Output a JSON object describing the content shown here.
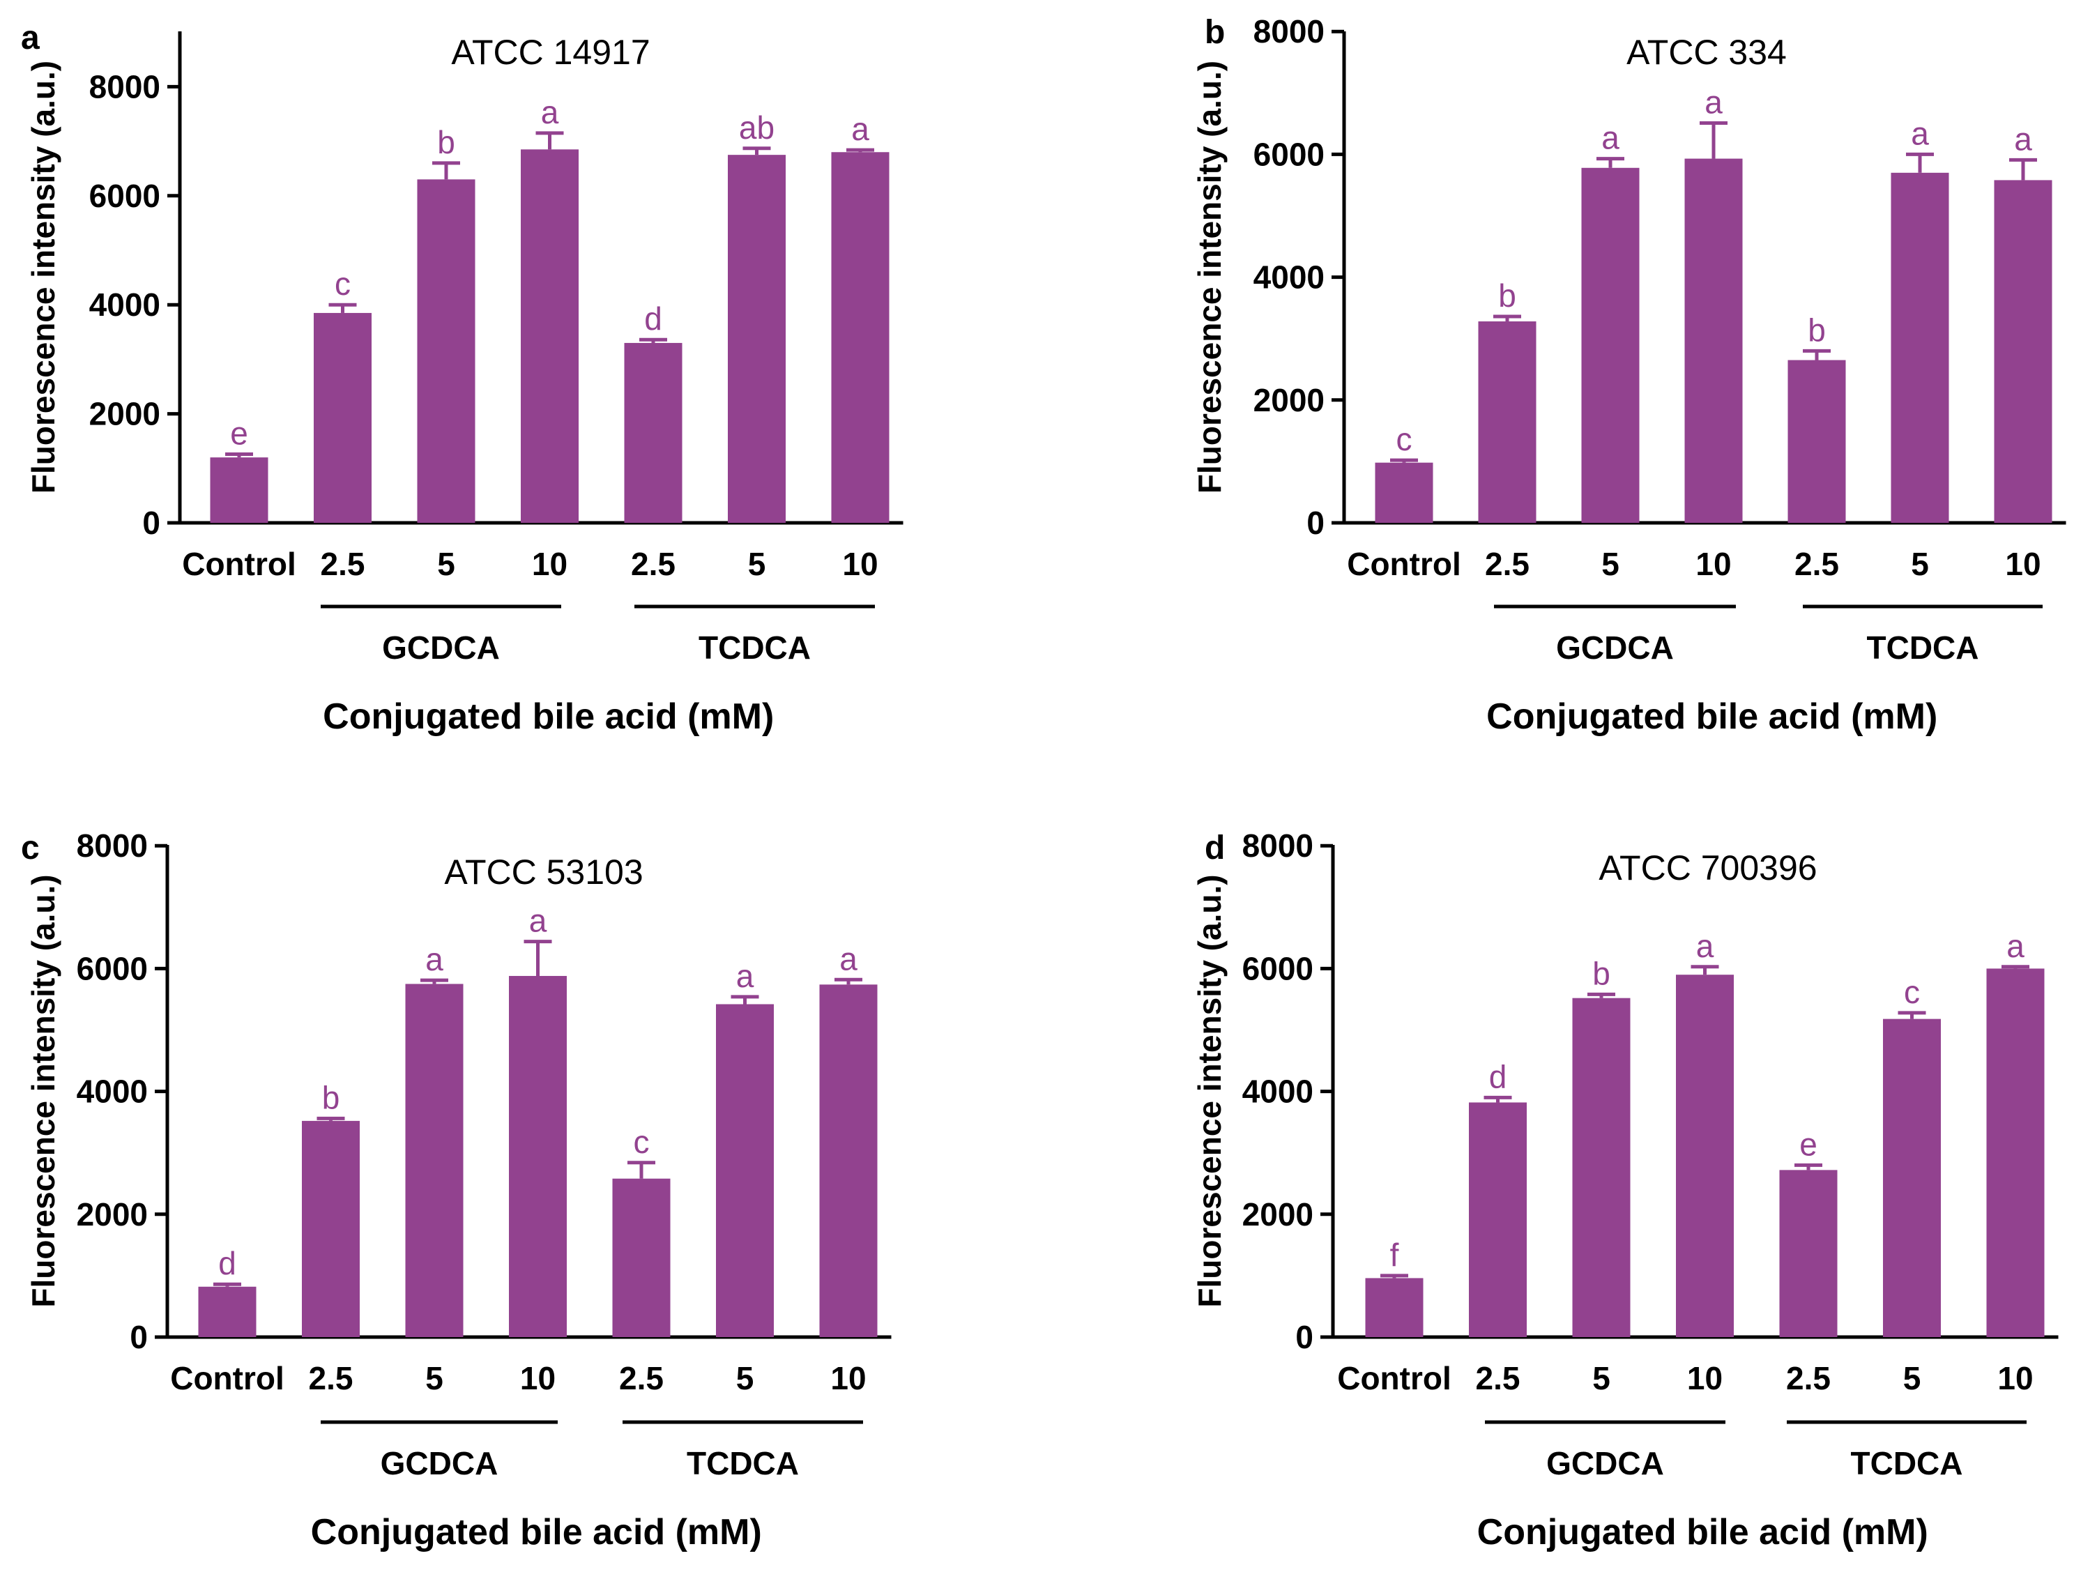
{
  "colors": {
    "bar": "#92428F",
    "letter": "#92428F",
    "axis": "#000000"
  },
  "chart_data": [
    {
      "type": "bar",
      "panel": "a",
      "title": "ATCC 14917",
      "ylabel": "Fluorescence intensity (a.u.)",
      "xlabel": "Conjugated bile acid (mM)",
      "ylim": [
        0,
        9000
      ],
      "yticks": [
        0,
        2000,
        4000,
        6000,
        8000
      ],
      "categories": [
        "Control",
        "2.5",
        "5",
        "10",
        "2.5",
        "5",
        "10"
      ],
      "groups": [
        {
          "label": "GCDCA",
          "from": 1,
          "to": 3
        },
        {
          "label": "TCDCA",
          "from": 4,
          "to": 6
        }
      ],
      "values": [
        1200,
        3850,
        6300,
        6850,
        3300,
        6750,
        6800
      ],
      "errors": [
        60,
        150,
        300,
        300,
        60,
        120,
        40
      ],
      "letters": [
        "e",
        "c",
        "b",
        "a",
        "d",
        "ab",
        "a"
      ]
    },
    {
      "type": "bar",
      "panel": "b",
      "title": "ATCC 334",
      "ylabel": "Fluorescence intensity (a.u.)",
      "xlabel": "Conjugated bile acid (mM)",
      "ylim": [
        0,
        8000
      ],
      "yticks": [
        0,
        2000,
        4000,
        6000,
        8000
      ],
      "categories": [
        "Control",
        "2.5",
        "5",
        "10",
        "2.5",
        "5",
        "10"
      ],
      "groups": [
        {
          "label": "GCDCA",
          "from": 1,
          "to": 3
        },
        {
          "label": "TCDCA",
          "from": 4,
          "to": 6
        }
      ],
      "values": [
        980,
        3280,
        5780,
        5930,
        2650,
        5700,
        5580
      ],
      "errors": [
        40,
        80,
        150,
        580,
        150,
        300,
        330
      ],
      "letters": [
        "c",
        "b",
        "a",
        "a",
        "b",
        "a",
        "a"
      ]
    },
    {
      "type": "bar",
      "panel": "c",
      "title": "ATCC 53103",
      "ylabel": "Fluorescence intensity (a.u.)",
      "xlabel": "Conjugated bile acid (mM)",
      "ylim": [
        0,
        8000
      ],
      "yticks": [
        0,
        2000,
        4000,
        6000,
        8000
      ],
      "categories": [
        "Control",
        "2.5",
        "5",
        "10",
        "2.5",
        "5",
        "10"
      ],
      "groups": [
        {
          "label": "GCDCA",
          "from": 1,
          "to": 3
        },
        {
          "label": "TCDCA",
          "from": 4,
          "to": 6
        }
      ],
      "values": [
        820,
        3520,
        5750,
        5880,
        2580,
        5420,
        5740
      ],
      "errors": [
        40,
        40,
        60,
        560,
        260,
        120,
        80
      ],
      "letters": [
        "d",
        "b",
        "a",
        "a",
        "c",
        "a",
        "a"
      ]
    },
    {
      "type": "bar",
      "panel": "d",
      "title": "ATCC 700396",
      "ylabel": "Fluorescence intensity (a.u.)",
      "xlabel": "Conjugated bile acid (mM)",
      "ylim": [
        0,
        8000
      ],
      "yticks": [
        0,
        2000,
        4000,
        6000,
        8000
      ],
      "categories": [
        "Control",
        "2.5",
        "5",
        "10",
        "2.5",
        "5",
        "10"
      ],
      "groups": [
        {
          "label": "GCDCA",
          "from": 1,
          "to": 3
        },
        {
          "label": "TCDCA",
          "from": 4,
          "to": 6
        }
      ],
      "values": [
        960,
        3820,
        5520,
        5900,
        2720,
        5180,
        6000
      ],
      "errors": [
        40,
        80,
        60,
        130,
        80,
        100,
        30
      ],
      "letters": [
        "f",
        "d",
        "b",
        "a",
        "e",
        "c",
        "a"
      ]
    }
  ]
}
